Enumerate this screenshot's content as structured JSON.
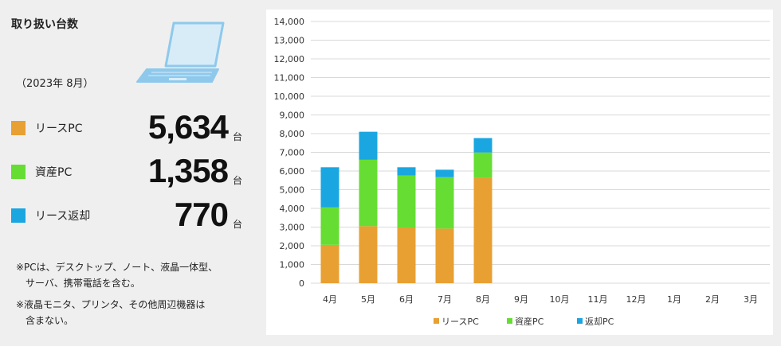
{
  "panel": {
    "title": "取り扱い台数",
    "period": "（2023年 8月）",
    "stats": [
      {
        "label": "リースPC",
        "value": "5,634",
        "unit": "台",
        "color": "#e8a032"
      },
      {
        "label": "資産PC",
        "value": "1,358",
        "unit": "台",
        "color": "#66dd33"
      },
      {
        "label": "リース返却",
        "value": "770",
        "unit": "台",
        "color": "#1aa6e0"
      }
    ],
    "notes": [
      "※PCは、デスクトップ、ノート、液晶一体型、",
      "　サーバ、携帯電話を含む。",
      "※液晶モニタ、プリンタ、その他周辺機器は",
      "　含まない。"
    ]
  },
  "chart_data": {
    "type": "bar",
    "stacked": true,
    "categories": [
      "4月",
      "5月",
      "6月",
      "7月",
      "8月",
      "9月",
      "10月",
      "11月",
      "12月",
      "1月",
      "2月",
      "3月"
    ],
    "series": [
      {
        "name": "リースPC",
        "color": "#e8a032",
        "values": [
          2050,
          3050,
          2980,
          2920,
          5634,
          null,
          null,
          null,
          null,
          null,
          null,
          null
        ]
      },
      {
        "name": "資産PC",
        "color": "#66dd33",
        "values": [
          2000,
          3550,
          2780,
          2750,
          1358,
          null,
          null,
          null,
          null,
          null,
          null,
          null
        ]
      },
      {
        "name": "返却PC",
        "color": "#1aa6e0",
        "values": [
          2150,
          1500,
          440,
          400,
          770,
          null,
          null,
          null,
          null,
          null,
          null,
          null
        ]
      }
    ],
    "ylim": [
      0,
      14000
    ],
    "yticks": [
      "0",
      "1,000",
      "2,000",
      "3,000",
      "4,000",
      "5,000",
      "6,000",
      "7,000",
      "8,000",
      "9,000",
      "10,000",
      "11,000",
      "12,000",
      "13,000",
      "14,000"
    ],
    "grid": true,
    "legend": "bottom"
  }
}
